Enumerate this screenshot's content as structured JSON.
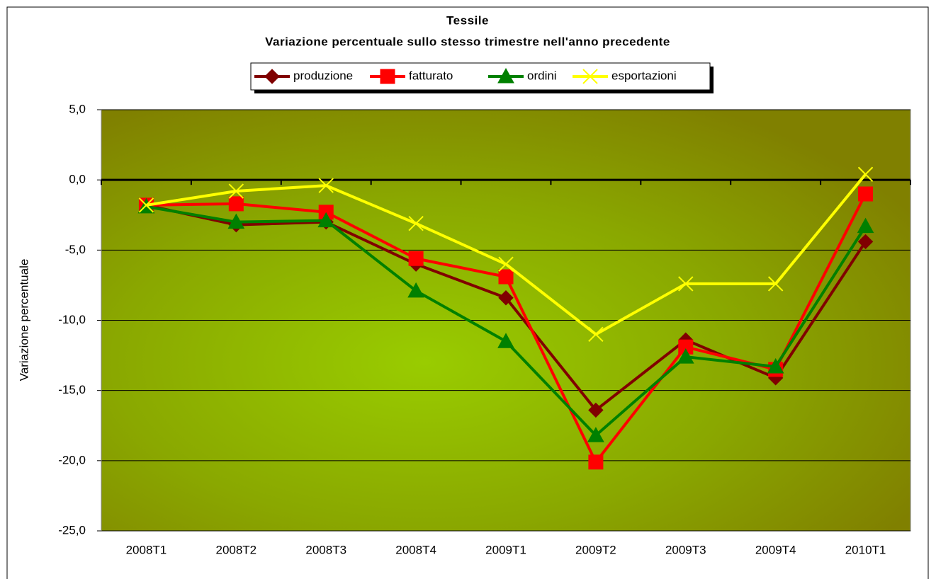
{
  "chart_data": {
    "type": "line",
    "title": "Tessile",
    "subtitle": "Variazione percentuale sullo stesso trimestre nell'anno precedente",
    "y_label": "Variazione percentuale",
    "categories": [
      "2008T1",
      "2008T2",
      "2008T3",
      "2008T4",
      "2009T1",
      "2009T2",
      "2009T3",
      "2009T4",
      "2010T1"
    ],
    "series": [
      {
        "name": "produzione",
        "color": "#800000",
        "marker": "diamond",
        "values": [
          -1.8,
          -3.2,
          -3.0,
          -6.0,
          -8.4,
          -16.4,
          -11.4,
          -14.1,
          -4.4
        ]
      },
      {
        "name": "fatturato",
        "color": "#ff0000",
        "marker": "square",
        "values": [
          -1.8,
          -1.7,
          -2.3,
          -5.6,
          -6.9,
          -20.1,
          -11.9,
          -13.5,
          -1.0
        ]
      },
      {
        "name": "ordini",
        "color": "#008000",
        "marker": "triangle",
        "values": [
          -1.9,
          -3.0,
          -2.9,
          -7.9,
          -11.5,
          -18.2,
          -12.6,
          -13.3,
          -3.3
        ]
      },
      {
        "name": "esportazioni",
        "color": "#ffff00",
        "marker": "x",
        "values": [
          -1.8,
          -0.8,
          -0.4,
          -3.1,
          -6.0,
          -11.0,
          -7.4,
          -7.4,
          0.4
        ]
      }
    ],
    "ylim": [
      -25,
      5
    ],
    "yticks": [
      {
        "value": 5,
        "label": "5,0"
      },
      {
        "value": 0,
        "label": "0,0"
      },
      {
        "value": -5,
        "label": "-5,0"
      },
      {
        "value": -10,
        "label": "-10,0"
      },
      {
        "value": -15,
        "label": "-15,0"
      },
      {
        "value": -20,
        "label": "-20,0"
      },
      {
        "value": -25,
        "label": "-25,0"
      }
    ],
    "grid": true
  }
}
